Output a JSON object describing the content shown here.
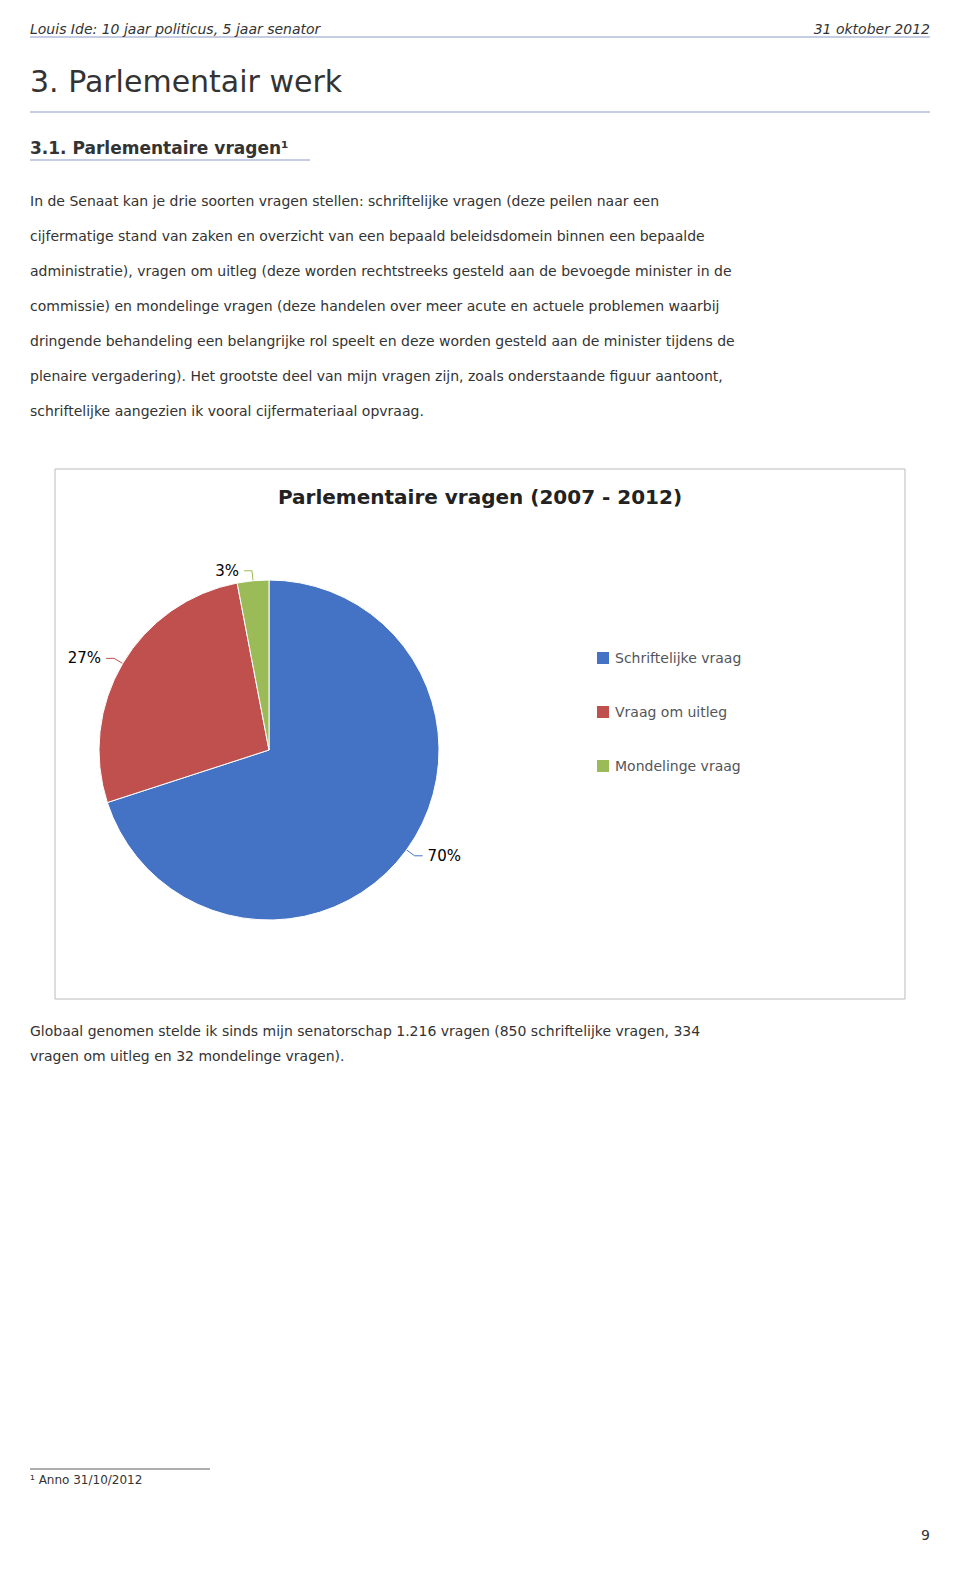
{
  "chart_data": {
    "type": "pie",
    "title": "Parlementaire vragen (2007 - 2012)",
    "categories": [
      "Schriftelijke vraag",
      "Vraag om uitleg",
      "Mondelinge vraag"
    ],
    "values": [
      70,
      27,
      3
    ],
    "value_labels": [
      "70%",
      "27%",
      "3%"
    ],
    "data_labels": true,
    "colors": [
      "#4472C4",
      "#C0504D",
      "#9BBB59"
    ],
    "legend": "right",
    "annotations": [
      "Louis Ide: 10 jaar politicus, 5 jaar senator",
      "31 oktober 2012",
      "3. Parlementair werk",
      "3.1. Parlementaire vragen¹",
      "In de Senaat kan je drie soorten vragen stellen: schriftelijke vragen (deze peilen naar een",
      "cijfermatige stand van zaken en overzicht van een bepaald beleidsdomein binnen een bepaalde",
      "administratie), vragen om uitleg (deze worden rechtstreeks gesteld aan de bevoegde minister in de",
      "commissie) en mondelinge vragen (deze handelen over meer acute en actuele problemen waarbij",
      "dringende behandeling een belangrijke rol speelt en deze worden gesteld aan de minister tijdens de",
      "plenaire vergadering). Het grootste deel van mijn vragen zijn, zoals onderstaande figuur aantoont,",
      "schriftelijke aangezien ik vooral cijfermateriaal opvraag.",
      "Globaal genomen stelde ik sinds mijn senatorschap 1.216 vragen (850 schriftelijke vragen, 334",
      "vragen om uitleg en 32 mondelinge vragen).",
      "¹ Anno 31/10/2012",
      "9"
    ]
  }
}
